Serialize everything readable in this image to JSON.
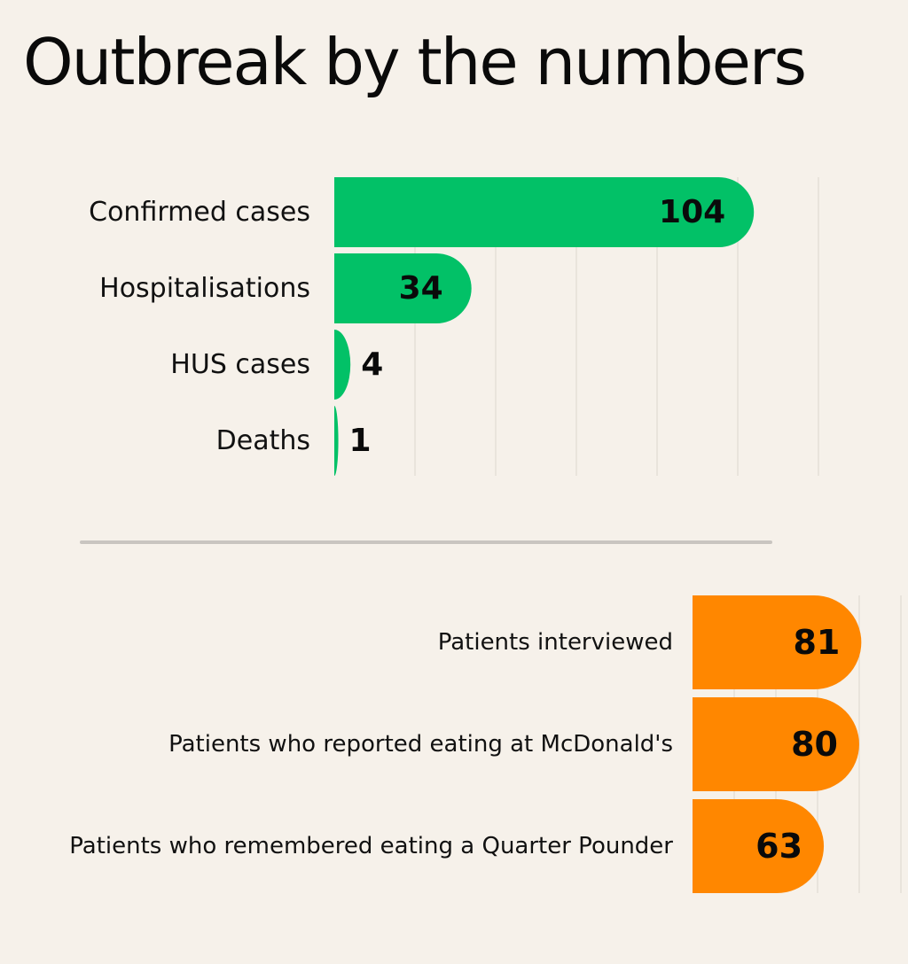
{
  "title": "Outbreak by the numbers",
  "colors": {
    "background": "#f6f1ea",
    "green": "#02c167",
    "orange": "#ff8700",
    "grid": "#dcd6ce",
    "divider": "#c9c5c0"
  },
  "chart_data": [
    {
      "type": "bar",
      "orientation": "horizontal",
      "categories": [
        "Confirmed cases",
        "Hospitalisations",
        "HUS cases",
        "Deaths"
      ],
      "values": [
        104,
        34,
        4,
        1
      ],
      "xlim": [
        0,
        120
      ],
      "grid": true
    },
    {
      "type": "bar",
      "orientation": "horizontal",
      "categories": [
        "Patients interviewed",
        "Patients who reported eating at McDonald's",
        "Patients who remembered eating a Quarter Pounder"
      ],
      "values": [
        81,
        80,
        63
      ],
      "xlim": [
        0,
        100
      ],
      "grid": true
    }
  ]
}
